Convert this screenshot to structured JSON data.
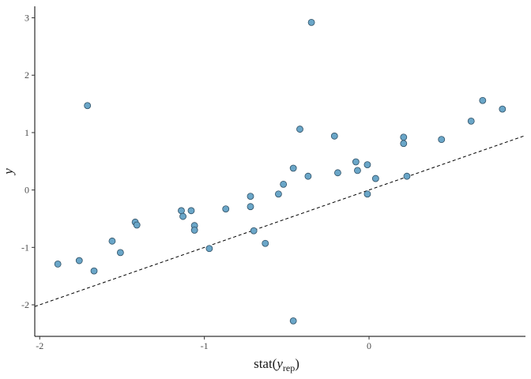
{
  "chart_data": {
    "type": "scatter",
    "xlabel": "stat(",
    "xlabel_var": "y",
    "xlabel_sub": "rep",
    "xlabel_close": ")",
    "ylabel": "y",
    "xlim": [
      -2.03,
      0.95
    ],
    "ylim": [
      -2.55,
      3.2
    ],
    "x_ticks": [
      -2,
      -1,
      0
    ],
    "x_tick_labels": [
      "-2",
      "-1",
      "0"
    ],
    "y_ticks": [
      -2,
      -1,
      0,
      1,
      2,
      3
    ],
    "y_tick_labels": [
      "-2",
      "-1",
      "0",
      "1",
      "2",
      "3"
    ],
    "grid": false,
    "reference_line": {
      "style": "dashed",
      "intercept": 0,
      "slope": 1
    },
    "point_fill": "#6aa6c8",
    "point_stroke": "#2f4f64",
    "points": [
      {
        "x": -1.89,
        "y": -1.29
      },
      {
        "x": -1.76,
        "y": -1.23
      },
      {
        "x": -1.71,
        "y": 1.47
      },
      {
        "x": -1.67,
        "y": -1.41
      },
      {
        "x": -1.56,
        "y": -0.89
      },
      {
        "x": -1.51,
        "y": -1.09
      },
      {
        "x": -1.42,
        "y": -0.56
      },
      {
        "x": -1.41,
        "y": -0.61
      },
      {
        "x": -1.14,
        "y": -0.36
      },
      {
        "x": -1.13,
        "y": -0.46
      },
      {
        "x": -1.08,
        "y": -0.36
      },
      {
        "x": -1.06,
        "y": -0.62
      },
      {
        "x": -1.06,
        "y": -0.7
      },
      {
        "x": -0.97,
        "y": -1.02
      },
      {
        "x": -0.87,
        "y": -0.33
      },
      {
        "x": -0.72,
        "y": -0.11
      },
      {
        "x": -0.72,
        "y": -0.29
      },
      {
        "x": -0.7,
        "y": -0.71
      },
      {
        "x": -0.63,
        "y": -0.93
      },
      {
        "x": -0.55,
        "y": -0.07
      },
      {
        "x": -0.52,
        "y": 0.1
      },
      {
        "x": -0.46,
        "y": 0.38
      },
      {
        "x": -0.46,
        "y": -2.28
      },
      {
        "x": -0.42,
        "y": 1.06
      },
      {
        "x": -0.37,
        "y": 0.24
      },
      {
        "x": -0.35,
        "y": 2.92
      },
      {
        "x": -0.21,
        "y": 0.94
      },
      {
        "x": -0.19,
        "y": 0.3
      },
      {
        "x": -0.08,
        "y": 0.49
      },
      {
        "x": -0.07,
        "y": 0.34
      },
      {
        "x": -0.01,
        "y": 0.44
      },
      {
        "x": -0.01,
        "y": -0.07
      },
      {
        "x": 0.04,
        "y": 0.2
      },
      {
        "x": 0.21,
        "y": 0.92
      },
      {
        "x": 0.21,
        "y": 0.81
      },
      {
        "x": 0.23,
        "y": 0.24
      },
      {
        "x": 0.44,
        "y": 0.88
      },
      {
        "x": 0.62,
        "y": 1.2
      },
      {
        "x": 0.69,
        "y": 1.56
      },
      {
        "x": 0.81,
        "y": 1.41
      }
    ]
  }
}
